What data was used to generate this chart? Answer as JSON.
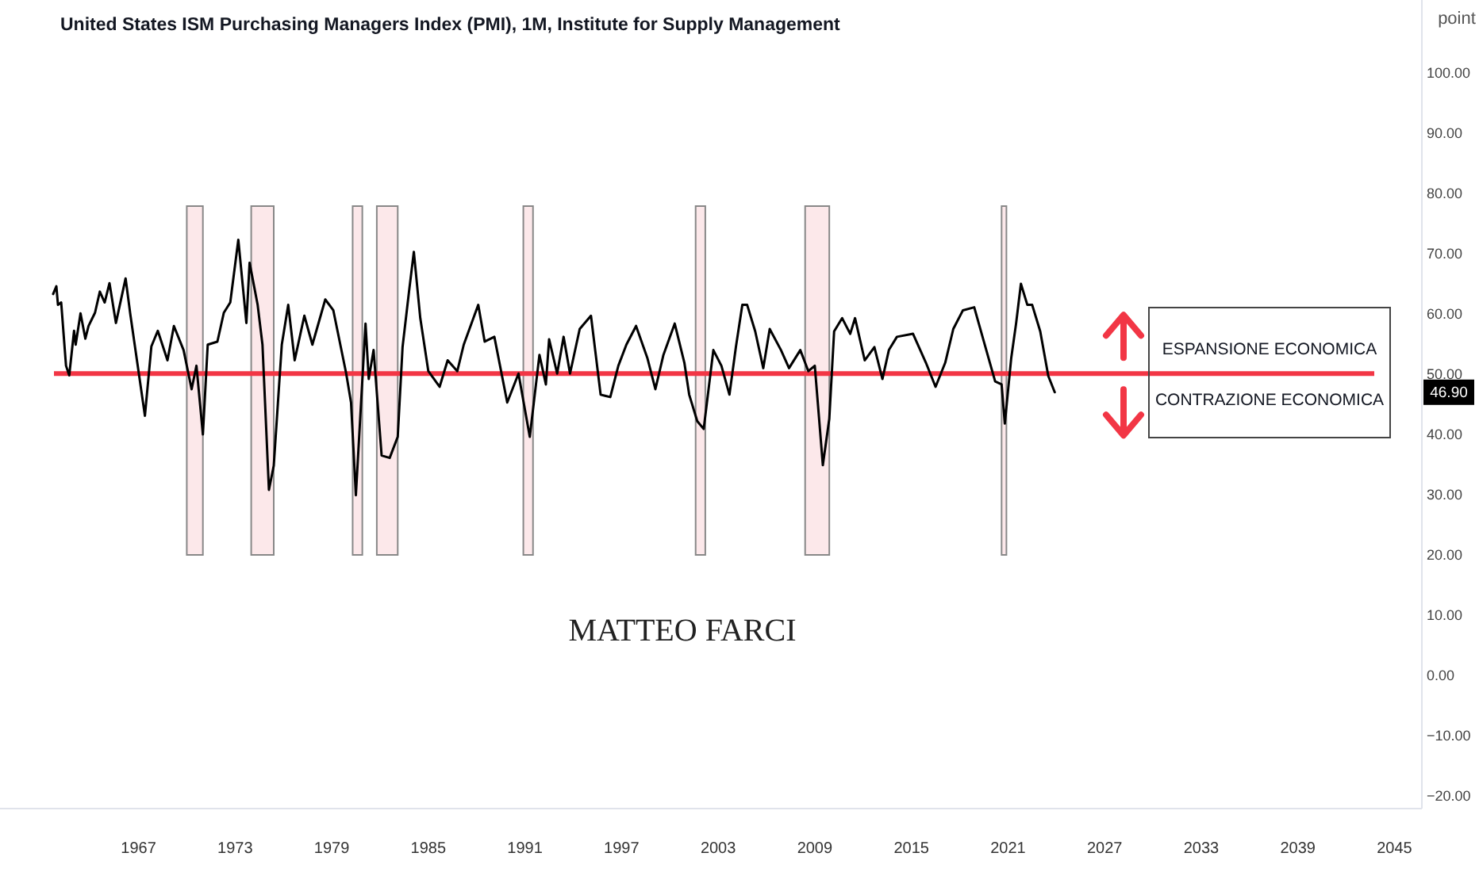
{
  "chart_data": {
    "type": "line",
    "title": "United States ISM Purchasing Managers Index (PMI), 1M, Institute for Supply Management",
    "ylabel": "point",
    "xlim": [
      1958.4,
      2046.7
    ],
    "xticks": [
      1967,
      1973,
      1979,
      1985,
      1991,
      1997,
      2003,
      2009,
      2015,
      2021,
      2027,
      2033,
      2039,
      2045
    ],
    "ylim": [
      -22.2,
      112
    ],
    "yticks": [
      {
        "value": -20,
        "label": "−20.00"
      },
      {
        "value": -10,
        "label": "−10.00"
      },
      {
        "value": 0,
        "label": "0.00"
      },
      {
        "value": 10,
        "label": "10.00"
      },
      {
        "value": 20,
        "label": "20.00"
      },
      {
        "value": 30,
        "label": "30.00"
      },
      {
        "value": 40,
        "label": "40.00"
      },
      {
        "value": 50,
        "label": "50.00"
      },
      {
        "value": 60,
        "label": "60.00"
      },
      {
        "value": 70,
        "label": "70.00"
      },
      {
        "value": 80,
        "label": "80.00"
      },
      {
        "value": 90,
        "label": "90.00"
      },
      {
        "value": 100,
        "label": "100.00"
      }
    ],
    "grid": false,
    "marker": "none",
    "line_style": "solid",
    "series": [
      {
        "color": "#000000",
        "x": [
          1961.7,
          1961.9,
          1962.0,
          1962.2,
          1962.5,
          1962.7,
          1963.0,
          1963.1,
          1963.4,
          1963.7,
          1963.9,
          1964.3,
          1964.6,
          1964.9,
          1965.2,
          1965.6,
          1966.2,
          1966.5,
          1967.4,
          1967.8,
          1968.2,
          1968.8,
          1969.2,
          1969.8,
          1970.3,
          1970.6,
          1971.0,
          1971.3,
          1971.9,
          1972.3,
          1972.7,
          1973.2,
          1973.7,
          1973.9,
          1974.4,
          1974.7,
          1975.1,
          1975.4,
          1975.9,
          1976.3,
          1976.7,
          1977.3,
          1977.8,
          1978.6,
          1979.1,
          1979.9,
          1980.2,
          1980.5,
          1981.1,
          1981.3,
          1981.6,
          1982.1,
          1982.6,
          1983.1,
          1983.4,
          1983.8,
          1984.1,
          1984.5,
          1985.0,
          1985.7,
          1986.2,
          1986.8,
          1987.2,
          1988.1,
          1988.5,
          1989.1,
          1989.9,
          1990.6,
          1991.3,
          1991.9,
          1992.3,
          1992.5,
          1993.0,
          1993.4,
          1993.8,
          1994.4,
          1995.1,
          1995.7,
          1996.3,
          1996.8,
          1997.3,
          1997.9,
          1998.6,
          1999.1,
          1999.6,
          2000.3,
          2000.9,
          2001.2,
          2001.7,
          2002.1,
          2002.7,
          2003.2,
          2003.7,
          2004.1,
          2004.5,
          2004.8,
          2005.3,
          2005.8,
          2006.2,
          2006.9,
          2007.4,
          2008.1,
          2008.6,
          2009.0,
          2009.5,
          2009.9,
          2010.2,
          2010.7,
          2011.2,
          2011.5,
          2012.1,
          2012.7,
          2013.2,
          2013.6,
          2014.1,
          2015.1,
          2015.9,
          2016.5,
          2017.1,
          2017.6,
          2018.2,
          2018.9,
          2019.5,
          2020.2,
          2020.6,
          2020.8,
          2021.2,
          2021.5,
          2021.8,
          2022.2,
          2022.5,
          2023.0,
          2023.5,
          2023.9
        ],
        "values": [
          63.2,
          64.5,
          61.4,
          61.8,
          51.3,
          49.7,
          57.1,
          54.8,
          60.0,
          55.8,
          57.9,
          60.1,
          63.6,
          61.8,
          65.0,
          58.4,
          65.8,
          59.7,
          43.0,
          54.5,
          57.1,
          52.2,
          57.9,
          53.9,
          47.4,
          51.3,
          39.9,
          54.8,
          55.3,
          60.1,
          61.8,
          72.2,
          58.4,
          68.4,
          61.4,
          54.8,
          30.7,
          34.7,
          54.8,
          61.4,
          52.2,
          59.6,
          54.8,
          62.3,
          60.5,
          50.0,
          45.2,
          29.8,
          58.3,
          49.1,
          53.9,
          36.4,
          36.0,
          39.5,
          54.4,
          63.6,
          70.2,
          59.2,
          50.4,
          47.8,
          52.2,
          50.4,
          54.8,
          61.4,
          55.3,
          56.1,
          45.2,
          50.0,
          39.5,
          53.1,
          48.2,
          55.7,
          50.0,
          56.1,
          50.0,
          57.4,
          59.6,
          46.5,
          46.1,
          51.3,
          54.8,
          57.9,
          52.6,
          47.4,
          53.1,
          58.3,
          51.8,
          46.5,
          42.1,
          40.8,
          53.9,
          51.3,
          46.5,
          54.4,
          61.4,
          61.4,
          57.0,
          50.9,
          57.4,
          53.9,
          50.9,
          53.9,
          50.4,
          51.3,
          34.8,
          42.5,
          57.0,
          59.2,
          56.6,
          59.2,
          52.2,
          54.4,
          49.1,
          53.9,
          56.1,
          56.6,
          51.8,
          47.8,
          51.8,
          57.4,
          60.5,
          61.0,
          55.3,
          48.7,
          48.2,
          41.7,
          52.6,
          58.3,
          64.9,
          61.4,
          61.4,
          57.0,
          49.6,
          46.9
        ]
      }
    ],
    "ref_lines": [
      {
        "axis": "y",
        "value": 50,
        "color": "#f23645"
      }
    ],
    "bands": [
      {
        "axis": "x",
        "from": 1970.0,
        "to": 1971.0,
        "color": "#fce8ea"
      },
      {
        "axis": "x",
        "from": 1974.0,
        "to": 1975.4,
        "color": "#fce8ea"
      },
      {
        "axis": "x",
        "from": 1980.3,
        "to": 1980.9,
        "color": "#fce8ea"
      },
      {
        "axis": "x",
        "from": 1981.8,
        "to": 1983.1,
        "color": "#fce8ea"
      },
      {
        "axis": "x",
        "from": 1990.9,
        "to": 1991.5,
        "color": "#fce8ea"
      },
      {
        "axis": "x",
        "from": 2001.6,
        "to": 2002.2,
        "color": "#fce8ea"
      },
      {
        "axis": "x",
        "from": 2008.4,
        "to": 2009.9,
        "color": "#fce8ea"
      },
      {
        "axis": "x",
        "from": 2020.6,
        "to": 2020.9,
        "color": "#fce8ea"
      }
    ],
    "annotations": [
      "ESPANSIONE ECONOMICA",
      "CONTRAZIONE ECONOMICA",
      "MATTEO FARCI",
      {
        "text": "46.90",
        "y": 46.9
      }
    ]
  }
}
